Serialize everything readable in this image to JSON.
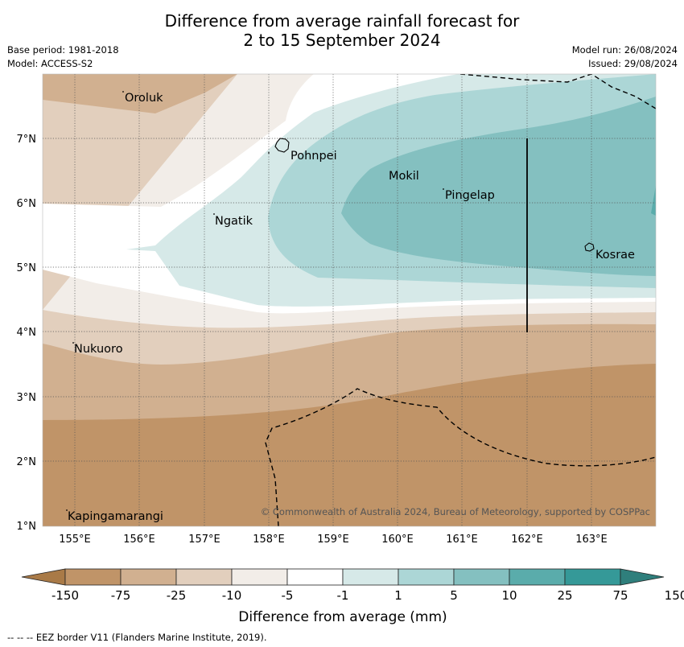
{
  "title_line1": "Difference from average rainfall forecast for",
  "title_line2": "2 to 15 September 2024",
  "base_period": "Base period: 1981-2018",
  "model": "Model: ACCESS-S2",
  "model_run": "Model run: 26/08/2024",
  "issued": "Issued: 29/08/2024",
  "lat_labels": [
    "7°N",
    "6°N",
    "5°N",
    "4°N",
    "3°N",
    "2°N",
    "1°N"
  ],
  "lon_labels": [
    "155°E",
    "156°E",
    "157°E",
    "158°E",
    "159°E",
    "160°E",
    "161°E",
    "162°E",
    "163°E"
  ],
  "places": [
    "Oroluk",
    "Pohnpei",
    "Mokil",
    "Pingelap",
    "Ngatik",
    "Kosrae",
    "Nukuoro",
    "Kapingamarangi"
  ],
  "copyright": "© Commonwealth of Australia 2024, Bureau of Meteorology, supported by COSPPac",
  "colorbar": {
    "labels": [
      "-150",
      "-75",
      "-25",
      "-10",
      "-5",
      "-1",
      "1",
      "5",
      "10",
      "25",
      "75",
      "150"
    ],
    "colors": [
      "#a97a47",
      "#c09468",
      "#d1b090",
      "#e2cfbd",
      "#f2ede8",
      "#ffffff",
      "#d6e9e8",
      "#acd6d6",
      "#84c0c0",
      "#5aacab",
      "#359998",
      "#2f7f7c"
    ],
    "title": "Difference from average (mm)"
  },
  "footnote": "--  --  -- EEZ border V11 (Flanders Marine Institute, 2019)."
}
